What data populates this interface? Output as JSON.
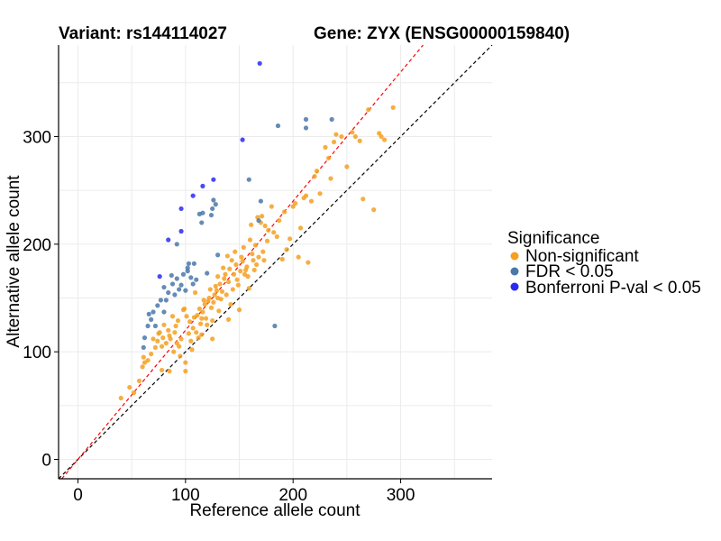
{
  "chart_data": {
    "type": "scatter",
    "title_left": "Variant: rs144114027",
    "title_right": "Gene: ZYX (ENSG00000159840)",
    "xlabel": "Reference allele count",
    "ylabel": "Alternative allele count",
    "xlim": [
      -18,
      385
    ],
    "ylim": [
      -18,
      385
    ],
    "x_ticks": [
      0,
      100,
      200,
      300
    ],
    "y_ticks": [
      0,
      100,
      200,
      300
    ],
    "grid": true,
    "reference_lines": [
      {
        "slope": 1.0,
        "intercept": 0,
        "color": "#000000",
        "style": "dashed"
      },
      {
        "slope": 1.2,
        "intercept": 0,
        "color": "#ff0000",
        "style": "dashed"
      }
    ],
    "legend": {
      "title": "Significance",
      "placement": "right",
      "entries": [
        {
          "label": "Non-significant",
          "color": "#f5a020"
        },
        {
          "label": "FDR < 0.05",
          "color": "#4a78a8"
        },
        {
          "label": "Bonferroni P-val < 0.05",
          "color": "#2a2af0"
        }
      ]
    },
    "series": [
      {
        "name": "Non-significant",
        "color": "#f5a020",
        "points": [
          [
            40,
            57
          ],
          [
            48,
            67
          ],
          [
            52,
            62
          ],
          [
            57,
            73
          ],
          [
            60,
            86
          ],
          [
            61,
            95
          ],
          [
            62,
            90
          ],
          [
            65,
            92
          ],
          [
            68,
            98
          ],
          [
            70,
            112
          ],
          [
            72,
            104
          ],
          [
            74,
            110
          ],
          [
            75,
            117
          ],
          [
            76,
            118
          ],
          [
            78,
            105
          ],
          [
            79,
            113
          ],
          [
            80,
            125
          ],
          [
            82,
            108
          ],
          [
            84,
            120
          ],
          [
            85,
            115
          ],
          [
            86,
            112
          ],
          [
            88,
            133
          ],
          [
            89,
            100
          ],
          [
            90,
            118
          ],
          [
            91,
            124
          ],
          [
            92,
            108
          ],
          [
            93,
            129
          ],
          [
            94,
            105
          ],
          [
            96,
            112
          ],
          [
            98,
            139
          ],
          [
            99,
            140
          ],
          [
            100,
            82
          ],
          [
            100,
            90
          ],
          [
            101,
            133
          ],
          [
            103,
            117
          ],
          [
            104,
            128
          ],
          [
            106,
            102
          ],
          [
            107,
            122
          ],
          [
            108,
            132
          ],
          [
            109,
            155
          ],
          [
            110,
            118
          ],
          [
            111,
            134
          ],
          [
            112,
            113
          ],
          [
            113,
            140
          ],
          [
            114,
            126
          ],
          [
            115,
            131
          ],
          [
            116,
            137
          ],
          [
            117,
            148
          ],
          [
            118,
            144
          ],
          [
            119,
            131
          ],
          [
            120,
            125
          ],
          [
            121,
            147
          ],
          [
            122,
            150
          ],
          [
            123,
            158
          ],
          [
            124,
            141
          ],
          [
            125,
            129
          ],
          [
            126,
            146
          ],
          [
            127,
            153
          ],
          [
            128,
            161
          ],
          [
            129,
            157
          ],
          [
            130,
            170
          ],
          [
            131,
            138
          ],
          [
            132,
            163
          ],
          [
            133,
            149
          ],
          [
            134,
            156
          ],
          [
            135,
            178
          ],
          [
            136,
            168
          ],
          [
            137,
            172
          ],
          [
            138,
            153
          ],
          [
            139,
            189
          ],
          [
            140,
            165
          ],
          [
            141,
            177
          ],
          [
            142,
            144
          ],
          [
            143,
            185
          ],
          [
            144,
            158
          ],
          [
            145,
            172
          ],
          [
            146,
            193
          ],
          [
            147,
            181
          ],
          [
            148,
            167
          ],
          [
            149,
            162
          ],
          [
            150,
            139
          ],
          [
            151,
            175
          ],
          [
            152,
            188
          ],
          [
            153,
            184
          ],
          [
            154,
            197
          ],
          [
            155,
            172
          ],
          [
            156,
            176
          ],
          [
            157,
            179
          ],
          [
            158,
            170
          ],
          [
            159,
            159
          ],
          [
            160,
            204
          ],
          [
            161,
            218
          ],
          [
            162,
            191
          ],
          [
            163,
            185
          ],
          [
            164,
            176
          ],
          [
            165,
            199
          ],
          [
            166,
            181
          ],
          [
            167,
            225
          ],
          [
            168,
            188
          ],
          [
            170,
            220
          ],
          [
            171,
            226
          ],
          [
            172,
            193
          ],
          [
            173,
            185
          ],
          [
            174,
            217
          ],
          [
            176,
            203
          ],
          [
            177,
            213
          ],
          [
            180,
            235
          ],
          [
            182,
            211
          ],
          [
            185,
            207
          ],
          [
            187,
            222
          ],
          [
            190,
            186
          ],
          [
            192,
            230
          ],
          [
            194,
            195
          ],
          [
            197,
            205
          ],
          [
            200,
            235
          ],
          [
            202,
            238
          ],
          [
            205,
            188
          ],
          [
            207,
            215
          ],
          [
            210,
            243
          ],
          [
            212,
            245
          ],
          [
            214,
            183
          ],
          [
            217,
            240
          ],
          [
            220,
            263
          ],
          [
            222,
            268
          ],
          [
            225,
            247
          ],
          [
            230,
            290
          ],
          [
            233,
            280
          ],
          [
            235,
            261
          ],
          [
            238,
            295
          ],
          [
            240,
            302
          ],
          [
            245,
            300
          ],
          [
            250,
            272
          ],
          [
            255,
            304
          ],
          [
            258,
            300
          ],
          [
            262,
            296
          ],
          [
            265,
            242
          ],
          [
            270,
            325
          ],
          [
            275,
            232
          ],
          [
            280,
            303
          ],
          [
            282,
            300
          ],
          [
            285,
            297
          ],
          [
            293,
            327
          ],
          [
            115,
            116
          ],
          [
            125,
            112
          ],
          [
            140,
            130
          ],
          [
            130,
            150
          ],
          [
            95,
            96
          ],
          [
            105,
            110
          ],
          [
            85,
            82
          ],
          [
            78,
            83
          ]
        ]
      },
      {
        "name": "FDR < 0.05",
        "color": "#4a78a8",
        "points": [
          [
            61,
            104
          ],
          [
            62,
            113
          ],
          [
            65,
            124
          ],
          [
            66,
            135
          ],
          [
            68,
            130
          ],
          [
            70,
            137
          ],
          [
            72,
            124
          ],
          [
            74,
            143
          ],
          [
            77,
            148
          ],
          [
            80,
            137
          ],
          [
            82,
            148
          ],
          [
            84,
            155
          ],
          [
            87,
            171
          ],
          [
            88,
            163
          ],
          [
            90,
            153
          ],
          [
            92,
            168
          ],
          [
            94,
            158
          ],
          [
            96,
            162
          ],
          [
            98,
            172
          ],
          [
            100,
            157
          ],
          [
            102,
            178
          ],
          [
            103,
            182
          ],
          [
            105,
            169
          ],
          [
            107,
            163
          ],
          [
            108,
            182
          ],
          [
            110,
            167
          ],
          [
            113,
            228
          ],
          [
            115,
            220
          ],
          [
            116,
            229
          ],
          [
            120,
            173
          ],
          [
            124,
            227
          ],
          [
            125,
            233
          ],
          [
            126,
            241
          ],
          [
            128,
            237
          ],
          [
            130,
            190
          ],
          [
            159,
            260
          ],
          [
            168,
            222
          ],
          [
            170,
            240
          ],
          [
            183,
            124
          ],
          [
            186,
            310
          ],
          [
            212,
            308
          ],
          [
            212,
            316
          ],
          [
            236,
            316
          ],
          [
            80,
            160
          ],
          [
            92,
            200
          ],
          [
            102,
            175
          ]
        ]
      },
      {
        "name": "Bonferroni P-val < 0.05",
        "color": "#2a2af0",
        "points": [
          [
            76,
            170
          ],
          [
            84,
            204
          ],
          [
            96,
            212
          ],
          [
            96,
            233
          ],
          [
            107,
            245
          ],
          [
            116,
            254
          ],
          [
            126,
            260
          ],
          [
            153,
            297
          ],
          [
            169,
            368
          ]
        ]
      }
    ]
  }
}
